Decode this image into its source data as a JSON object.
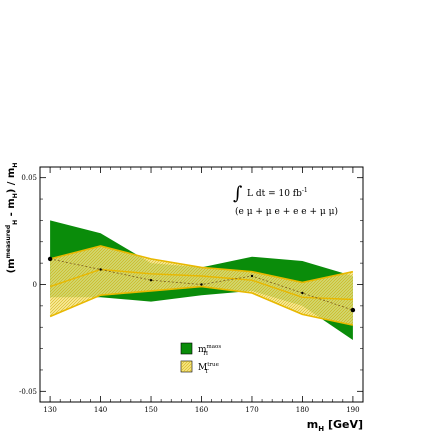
{
  "chart_data": {
    "type": "area",
    "x_label_main": "m",
    "x_label_sub": "H",
    "x_label_unit": " [GeV]",
    "y_label": "(m_H^measured - m_H) / m_H",
    "y_label_parts": {
      "open": "(m",
      "sup": "measured",
      "sub1": "H",
      "mid": " - m",
      "sub2": "H",
      "close": ") / m",
      "sub3": "H"
    },
    "xlim": [
      128,
      192
    ],
    "ylim": [
      -0.055,
      0.055
    ],
    "x_ticks": [
      130,
      140,
      150,
      160,
      170,
      180,
      190
    ],
    "y_ticks": [
      {
        "value": 0.05,
        "label": "0.05"
      },
      {
        "value": 0,
        "label": "0"
      },
      {
        "value": -0.05,
        "label": "-0.05"
      }
    ],
    "annotation": {
      "integral": "∫",
      "text": "L dt = 10 fb",
      "sup": "-1",
      "channels": "(e μ + μ e + e e + μ μ)"
    },
    "series": [
      {
        "name": "m_H^maos",
        "label_main": "m",
        "label_sub": "H",
        "label_sup": "maos",
        "color": "#0a8c0a",
        "x": [
          130,
          140,
          150,
          160,
          170,
          180,
          190
        ],
        "upper": [
          0.03,
          0.024,
          0.01,
          0.008,
          0.013,
          0.011,
          0.004
        ],
        "lower": [
          -0.006,
          -0.006,
          -0.008,
          -0.005,
          -0.003,
          -0.01,
          -0.026
        ]
      },
      {
        "name": "M_T^true",
        "label_main": "M",
        "label_sub": "T",
        "label_sup": "true",
        "color": "#f5e27a",
        "edge_color": "#e8b800",
        "x": [
          130,
          140,
          150,
          160,
          170,
          180,
          190
        ],
        "upper": [
          0.012,
          0.018,
          0.012,
          0.008,
          0.006,
          0.001,
          0.006
        ],
        "lower": [
          -0.015,
          -0.005,
          -0.003,
          -0.001,
          -0.004,
          -0.014,
          -0.019
        ],
        "center": [
          -0.001,
          0.007,
          0.005,
          0.004,
          0.002,
          -0.006,
          -0.007
        ]
      }
    ],
    "points": {
      "x": [
        130,
        140,
        150,
        160,
        170,
        180,
        190
      ],
      "y": [
        0.012,
        0.007,
        0.002,
        0.0,
        0.004,
        -0.004,
        -0.012
      ]
    },
    "grid": false,
    "legend_position": "lower-center"
  }
}
